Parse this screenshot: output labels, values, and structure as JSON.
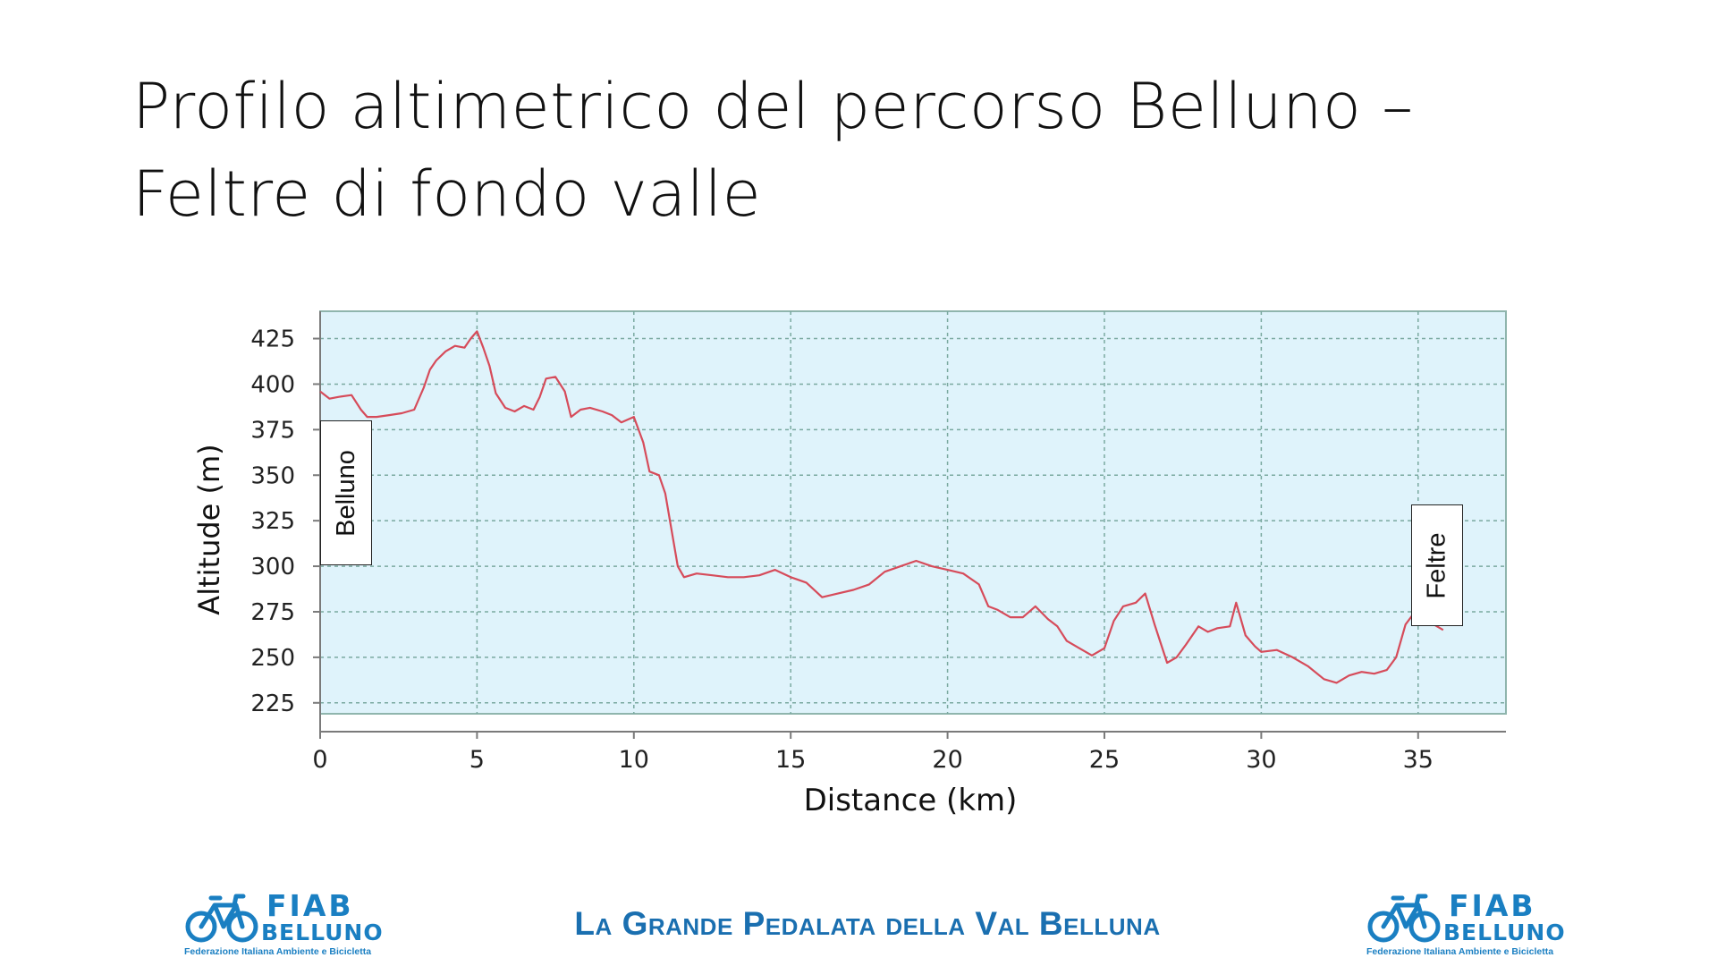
{
  "slide": {
    "title": "Profilo altimetrico del percorso Belluno – Feltre di fondo valle",
    "footer": "La Grande Pedalata della Val Belluna"
  },
  "labels": {
    "start": "Belluno",
    "end": "Feltre"
  },
  "logo": {
    "line1": "FIAB",
    "line2": "BELLUNO",
    "tagline": "Federazione Italiana Ambiente e Bicicletta",
    "icon": "bicycle-icon",
    "color": "#1a7fc2"
  },
  "chart_data": {
    "type": "line",
    "title": "",
    "xlabel": "Distance (km)",
    "ylabel": "Altitude (m)",
    "xlim": [
      0,
      37.8
    ],
    "ylim": [
      219,
      440
    ],
    "xticks": [
      0,
      5,
      10,
      15,
      20,
      25,
      30,
      35
    ],
    "yticks": [
      225,
      250,
      275,
      300,
      325,
      350,
      375,
      400,
      425
    ],
    "grid": true,
    "colors": {
      "plot_bg": "#dff3fb",
      "line": "#d64b5a",
      "grid": "#7aa9a0"
    },
    "series": [
      {
        "x": [
          0,
          0.3,
          0.6,
          1,
          1.3,
          1.5,
          1.8,
          2.2,
          2.6,
          3,
          3.3,
          3.5,
          3.7,
          4,
          4.3,
          4.6,
          4.8,
          5,
          5.2,
          5.4,
          5.6,
          5.9,
          6.2,
          6.5,
          6.8,
          7,
          7.2,
          7.5,
          7.8,
          8,
          8.3,
          8.6,
          9,
          9.3,
          9.6,
          10,
          10.3,
          10.5,
          10.8,
          11,
          11.2,
          11.4,
          11.6,
          12,
          12.5,
          13,
          13.5,
          14,
          14.5,
          15,
          15.5,
          16,
          16.5,
          17,
          17.5,
          18,
          18.5,
          19,
          19.5,
          20,
          20.5,
          21,
          21.3,
          21.6,
          22,
          22.4,
          22.8,
          23.2,
          23.5,
          23.8,
          24.2,
          24.6,
          25,
          25.3,
          25.6,
          26,
          26.3,
          26.6,
          27,
          27.3,
          27.6,
          28,
          28.3,
          28.6,
          29,
          29.2,
          29.5,
          29.8,
          30,
          30.5,
          31,
          31.5,
          32,
          32.4,
          32.8,
          33.2,
          33.6,
          34,
          34.3,
          34.6,
          34.9,
          35.2,
          35.5,
          35.8
        ],
        "y": [
          396,
          392,
          393,
          394,
          386,
          382,
          382,
          383,
          384,
          386,
          398,
          408,
          413,
          418,
          421,
          420,
          425,
          429,
          420,
          410,
          395,
          387,
          385,
          388,
          386,
          393,
          403,
          404,
          396,
          382,
          386,
          387,
          385,
          383,
          379,
          382,
          368,
          352,
          350,
          340,
          320,
          300,
          294,
          296,
          295,
          294,
          294,
          295,
          298,
          294,
          291,
          283,
          285,
          287,
          290,
          297,
          300,
          303,
          300,
          298,
          296,
          290,
          278,
          276,
          272,
          272,
          278,
          271,
          267,
          259,
          255,
          251,
          255,
          270,
          278,
          280,
          285,
          268,
          247,
          250,
          257,
          267,
          264,
          266,
          267,
          280,
          262,
          256,
          253,
          254,
          250,
          245,
          238,
          236,
          240,
          242,
          241,
          243,
          250,
          268,
          275,
          270,
          268,
          265
        ]
      }
    ]
  }
}
